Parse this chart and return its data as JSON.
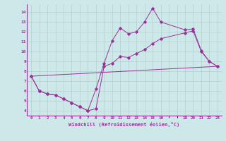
{
  "xlabel": "Windchill (Refroidissement éolien,°C)",
  "bg_color": "#cce8e8",
  "grid_color": "#b0c8c8",
  "line_color": "#993399",
  "ylim": [
    3.5,
    14.8
  ],
  "xlim": [
    -0.5,
    23.5
  ],
  "yticks": [
    4,
    5,
    6,
    7,
    8,
    9,
    10,
    11,
    12,
    13,
    14
  ],
  "x_ticks": [
    0,
    1,
    2,
    3,
    4,
    5,
    6,
    7,
    8,
    9,
    10,
    11,
    12,
    13,
    14,
    15,
    16,
    19,
    20,
    21,
    22,
    23
  ],
  "line1_x": [
    0,
    1,
    2,
    3,
    4,
    5,
    6,
    7,
    8,
    9,
    10,
    11,
    12,
    13,
    14,
    15,
    16,
    19,
    20,
    21,
    22,
    23
  ],
  "line1_y": [
    7.5,
    6.0,
    5.7,
    5.6,
    5.2,
    4.8,
    4.4,
    4.0,
    6.2,
    8.8,
    11.1,
    12.4,
    11.8,
    12.0,
    13.0,
    14.4,
    13.0,
    12.2,
    12.3,
    10.1,
    9.0,
    8.5
  ],
  "line2_x": [
    0,
    1,
    2,
    3,
    4,
    5,
    6,
    7,
    8,
    9,
    10,
    11,
    12,
    13,
    14,
    15,
    16,
    19,
    20,
    21,
    22,
    23
  ],
  "line2_y": [
    7.5,
    6.0,
    5.7,
    5.6,
    5.2,
    4.8,
    4.4,
    4.0,
    4.2,
    8.5,
    8.8,
    9.5,
    9.4,
    9.8,
    10.2,
    10.8,
    11.3,
    11.9,
    12.1,
    10.0,
    9.0,
    8.5
  ],
  "line3_x": [
    0,
    23
  ],
  "line3_y": [
    7.5,
    8.5
  ]
}
